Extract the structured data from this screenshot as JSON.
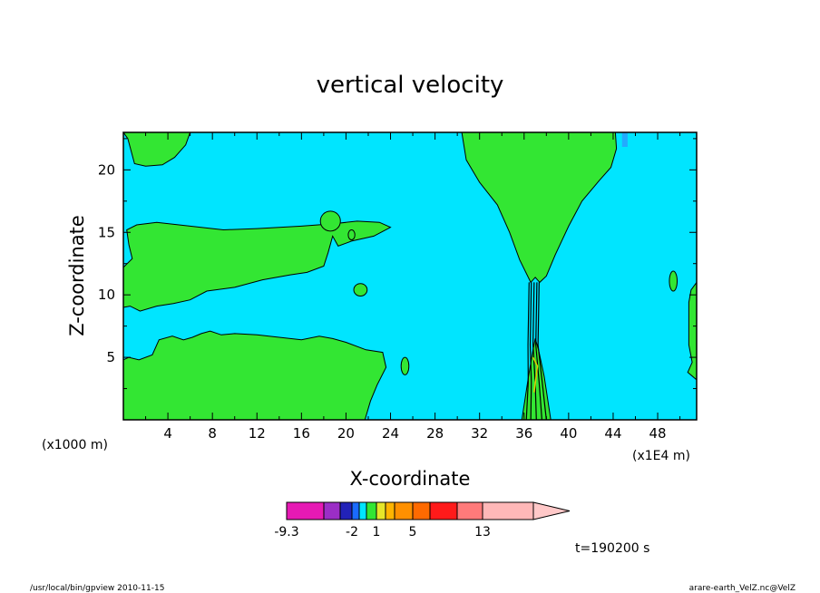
{
  "chart_data": {
    "type": "heatmap",
    "title": "vertical velocity",
    "xlabel": "X-coordinate",
    "ylabel": "Z-coordinate",
    "x_unit": "(x1E4 m)",
    "y_unit": "(x1000 m)",
    "xlim": [
      0,
      51.5
    ],
    "ylim": [
      0,
      23
    ],
    "x_ticks": [
      4,
      8,
      12,
      16,
      20,
      24,
      28,
      32,
      36,
      40,
      44,
      48
    ],
    "y_ticks": [
      5,
      10,
      15,
      20
    ],
    "background_level_color": "#00e5ff",
    "positive_region_color": "#33e633",
    "regions": [
      {
        "name": "upper-left",
        "points": [
          [
            0,
            23
          ],
          [
            0.4,
            22.5
          ],
          [
            1,
            20.5
          ],
          [
            2,
            20.3
          ],
          [
            3.5,
            20.4
          ],
          [
            4.6,
            21
          ],
          [
            5.6,
            22
          ],
          [
            6,
            23
          ]
        ]
      },
      {
        "name": "mid-left-band",
        "points": [
          [
            0,
            12.2
          ],
          [
            0.8,
            12.9
          ],
          [
            0.5,
            14
          ],
          [
            0.3,
            15.2
          ],
          [
            1.2,
            15.6
          ],
          [
            3,
            15.8
          ],
          [
            6,
            15.5
          ],
          [
            9,
            15.2
          ],
          [
            12,
            15.3
          ],
          [
            16,
            15.5
          ],
          [
            19,
            15.7
          ],
          [
            21,
            15.9
          ],
          [
            23,
            15.8
          ],
          [
            24,
            15.4
          ],
          [
            22.5,
            14.7
          ],
          [
            20.5,
            14.3
          ],
          [
            19.3,
            13.9
          ],
          [
            18.8,
            14.7
          ],
          [
            18.4,
            13.4
          ],
          [
            18,
            12.3
          ],
          [
            16.5,
            11.8
          ],
          [
            15,
            11.6
          ],
          [
            12.5,
            11.2
          ],
          [
            10,
            10.6
          ],
          [
            7.5,
            10.3
          ],
          [
            6,
            9.6
          ],
          [
            4.5,
            9.3
          ],
          [
            3,
            9.1
          ],
          [
            1.5,
            8.7
          ],
          [
            0.6,
            9.1
          ],
          [
            0,
            9
          ]
        ]
      },
      {
        "name": "lower-left-block",
        "points": [
          [
            0,
            0
          ],
          [
            0,
            4.8
          ],
          [
            0.5,
            5
          ],
          [
            1.4,
            4.8
          ],
          [
            2.6,
            5.2
          ],
          [
            3.2,
            6.4
          ],
          [
            4.4,
            6.7
          ],
          [
            5.4,
            6.4
          ],
          [
            6.2,
            6.6
          ],
          [
            7,
            6.9
          ],
          [
            7.8,
            7.1
          ],
          [
            8.8,
            6.8
          ],
          [
            10,
            6.9
          ],
          [
            12,
            6.8
          ],
          [
            14,
            6.6
          ],
          [
            16,
            6.4
          ],
          [
            17.6,
            6.7
          ],
          [
            18.8,
            6.5
          ],
          [
            20,
            6.2
          ],
          [
            21.8,
            5.6
          ],
          [
            23.3,
            5.4
          ],
          [
            23.6,
            4.2
          ],
          [
            22.8,
            2.8
          ],
          [
            22.2,
            1.5
          ],
          [
            21.7,
            0
          ]
        ]
      },
      {
        "name": "column-upper",
        "points": [
          [
            30.4,
            23
          ],
          [
            30.8,
            20.8
          ],
          [
            32,
            19
          ],
          [
            33.6,
            17.2
          ],
          [
            34.7,
            15
          ],
          [
            35.6,
            12.8
          ],
          [
            36.6,
            11
          ],
          [
            37,
            11.4
          ],
          [
            37.4,
            11
          ],
          [
            38,
            11.5
          ],
          [
            38.8,
            13.2
          ],
          [
            40,
            15.5
          ],
          [
            41.2,
            17.5
          ],
          [
            42.8,
            19.2
          ],
          [
            43.8,
            20.2
          ],
          [
            44.3,
            21.7
          ],
          [
            44.2,
            23
          ]
        ]
      },
      {
        "name": "column-lower",
        "points": [
          [
            35.8,
            0
          ],
          [
            36.4,
            3.5
          ],
          [
            36.8,
            5.6
          ],
          [
            37,
            6.5
          ],
          [
            37.3,
            5.6
          ],
          [
            37.8,
            3.5
          ],
          [
            38.4,
            0
          ]
        ]
      },
      {
        "name": "right-edge",
        "points": [
          [
            51.5,
            11
          ],
          [
            51,
            10.4
          ],
          [
            50.8,
            9.4
          ],
          [
            50.8,
            6
          ],
          [
            51.1,
            4.6
          ],
          [
            50.7,
            3.8
          ],
          [
            51.5,
            3.2
          ]
        ]
      }
    ],
    "colorbar": {
      "colors": [
        "#e619b4",
        "#9b2ec6",
        "#2222b8",
        "#1a6bff",
        "#00e5ff",
        "#33e633",
        "#e6e629",
        "#ffb400",
        "#ff9000",
        "#ff6a00",
        "#ff1a1a",
        "#ff7a7a",
        "#ffb8b8",
        "#ffc8c8"
      ],
      "tick_labels": [
        "-9.3",
        "-2",
        "1",
        "5",
        "13"
      ],
      "extend": "max"
    }
  },
  "time_label": "t=190200 s",
  "footer_left": "/usr/local/bin/gpview   2010-11-15",
  "footer_right": "arare-earth_VelZ.nc@VelZ"
}
